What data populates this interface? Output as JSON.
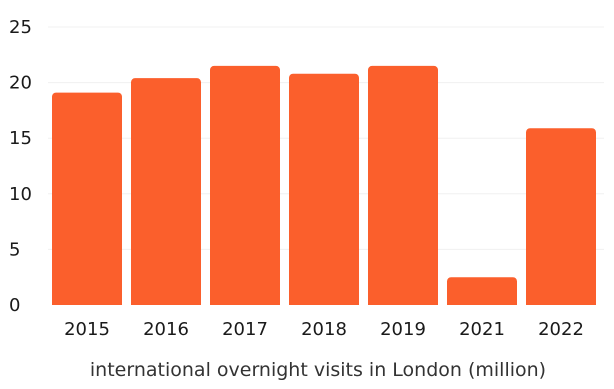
{
  "chart_data": {
    "type": "bar",
    "categories": [
      "2015",
      "2016",
      "2017",
      "2018",
      "2019",
      "2021",
      "2022"
    ],
    "values": [
      19.1,
      20.4,
      21.5,
      20.8,
      21.5,
      2.5,
      15.9
    ],
    "title": "",
    "xlabel": "international overnight visits in London (million)",
    "ylabel": "",
    "ylim": [
      0,
      25
    ],
    "yticks": [
      0,
      5,
      10,
      15,
      20,
      25
    ],
    "grid": true,
    "legend": "none",
    "bar_color": "#fb5f2c"
  }
}
